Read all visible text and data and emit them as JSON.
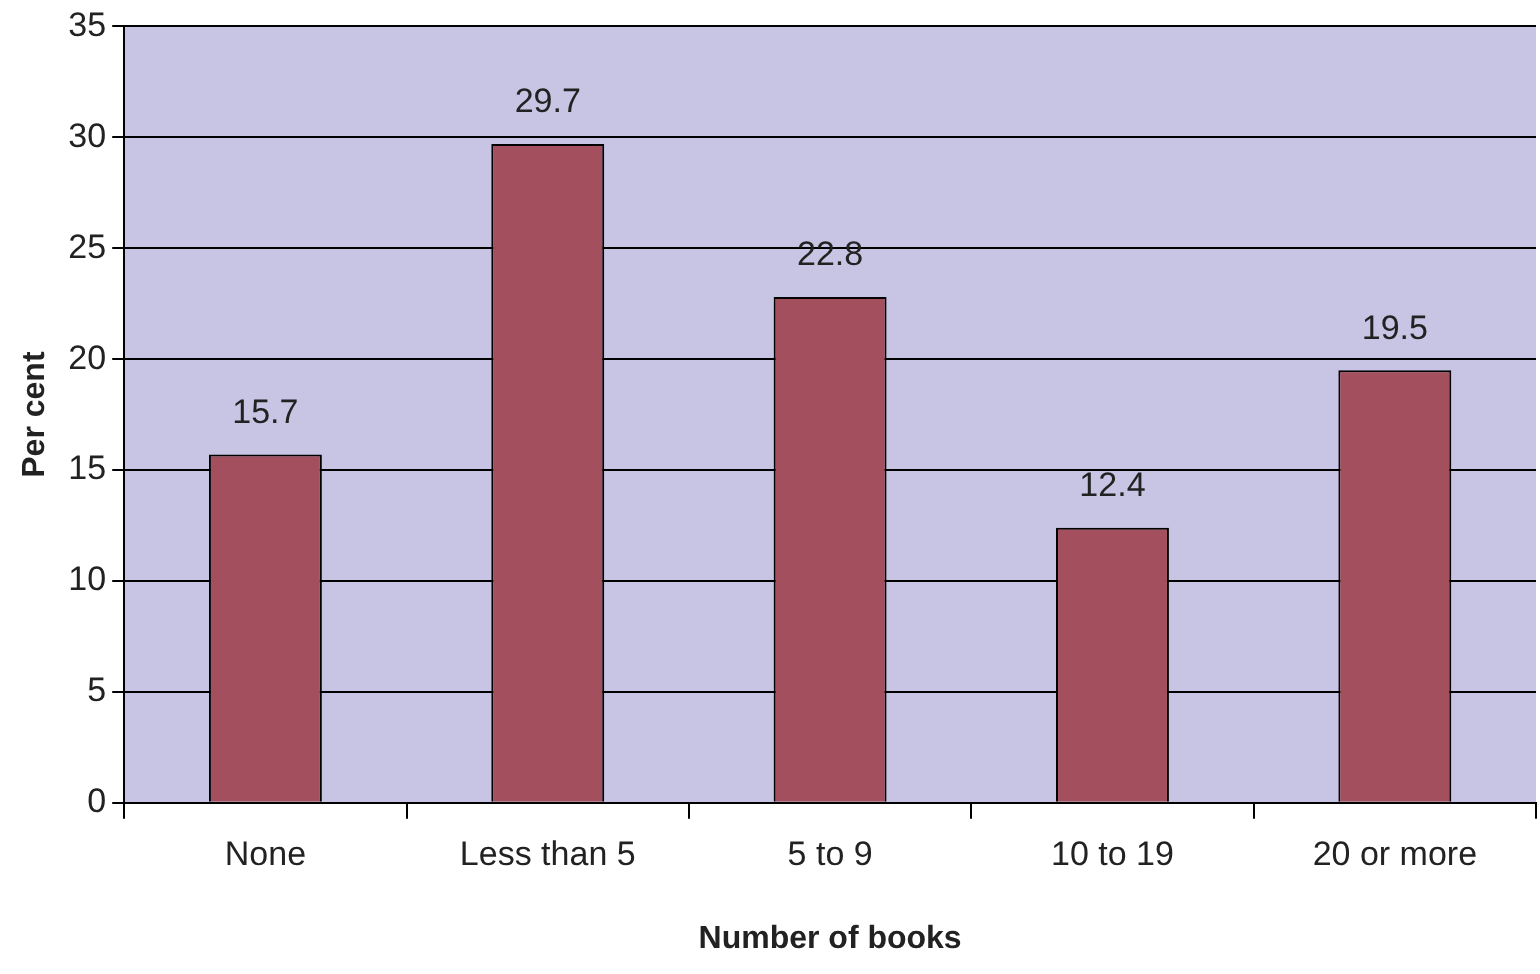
{
  "chart_data": {
    "type": "bar",
    "xlabel": "Number of books",
    "ylabel": "Per cent",
    "categories": [
      "None",
      "Less than 5",
      "5 to 9",
      "10 to 19",
      "20 or more"
    ],
    "values": [
      15.7,
      29.7,
      22.8,
      12.4,
      19.5
    ],
    "color": "#a34f5e",
    "ylim": [
      0,
      35
    ],
    "yticks": [
      0,
      5,
      10,
      15,
      20,
      25,
      30,
      35
    ],
    "grid": "y",
    "data_labels": true,
    "legend": false
  }
}
